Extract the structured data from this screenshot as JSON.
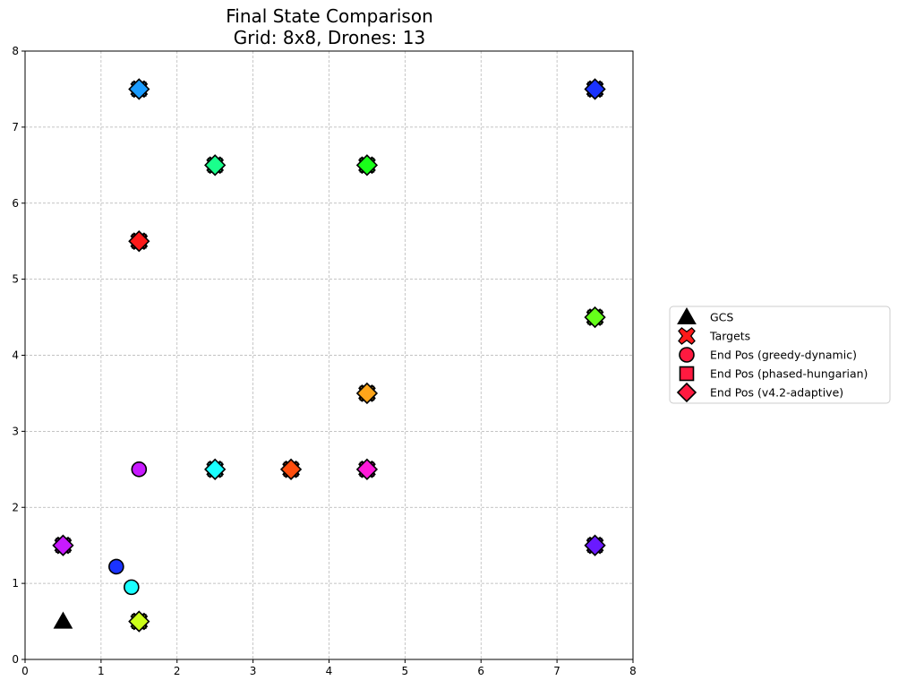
{
  "chart_data": {
    "type": "scatter",
    "title": "Final State Comparison",
    "subtitle": "Grid: 8x8, Drones: 13",
    "xlim": [
      0,
      8
    ],
    "ylim": [
      0,
      8
    ],
    "xticks": [
      "0",
      "1",
      "2",
      "3",
      "4",
      "5",
      "6",
      "7",
      "8"
    ],
    "yticks": [
      "0",
      "1",
      "2",
      "3",
      "4",
      "5",
      "6",
      "7",
      "8"
    ],
    "grid": true,
    "legend_placement": "right",
    "legend": [
      {
        "label": "GCS",
        "marker": "triangle",
        "color": "#000000"
      },
      {
        "label": "Targets",
        "marker": "x",
        "color": "#ff1a1a"
      },
      {
        "label": "End Pos (greedy-dynamic)",
        "marker": "circle",
        "color": "#ff1a40"
      },
      {
        "label": "End Pos (phased-hungarian)",
        "marker": "square",
        "color": "#ff1a40"
      },
      {
        "label": "End Pos (v4.2-adaptive)",
        "marker": "diamond",
        "color": "#ff1a40"
      }
    ],
    "gcs": {
      "x": 0.5,
      "y": 0.5
    },
    "drones": [
      {
        "color": "#ff1a1a",
        "target": [
          1.5,
          5.5
        ],
        "greedy": [
          1.5,
          5.5
        ],
        "hungarian": [
          1.5,
          5.5
        ],
        "adaptive": [
          1.5,
          5.5
        ]
      },
      {
        "color": "#ff4d0d",
        "target": [
          3.5,
          2.5
        ],
        "greedy": [
          3.5,
          2.5
        ],
        "hungarian": [
          3.5,
          2.5
        ],
        "adaptive": [
          3.5,
          2.5
        ]
      },
      {
        "color": "#ffa51a",
        "target": [
          4.5,
          3.5
        ],
        "greedy": [
          4.5,
          3.5
        ],
        "hungarian": [
          4.5,
          3.5
        ],
        "adaptive": [
          4.5,
          3.5
        ]
      },
      {
        "color": "#ccff1a",
        "target": [
          1.5,
          0.5
        ],
        "greedy": [
          1.5,
          0.5
        ],
        "hungarian": [
          1.5,
          0.5
        ],
        "adaptive": [
          1.5,
          0.5
        ]
      },
      {
        "color": "#66ff1a",
        "target": [
          7.5,
          4.5
        ],
        "greedy": [
          7.5,
          4.5
        ],
        "hungarian": [
          7.5,
          4.5
        ],
        "adaptive": [
          7.5,
          4.5
        ]
      },
      {
        "color": "#1aff1a",
        "target": [
          4.5,
          6.5
        ],
        "greedy": [
          4.5,
          6.5
        ],
        "hungarian": [
          4.5,
          6.5
        ],
        "adaptive": [
          4.5,
          6.5
        ]
      },
      {
        "color": "#1aff8c",
        "target": [
          2.5,
          6.5
        ],
        "greedy": [
          2.5,
          6.5
        ],
        "hungarian": [
          2.5,
          6.5
        ],
        "adaptive": [
          2.5,
          6.5
        ]
      },
      {
        "color": "#1affff",
        "target": [
          2.5,
          2.5
        ],
        "greedy": [
          1.4,
          0.95
        ],
        "hungarian": [
          2.5,
          2.5
        ],
        "adaptive": [
          2.5,
          2.5
        ]
      },
      {
        "color": "#1a9cff",
        "target": [
          1.5,
          7.5
        ],
        "greedy": [
          1.5,
          7.5
        ],
        "hungarian": [
          1.5,
          7.5
        ],
        "adaptive": [
          1.5,
          7.5
        ]
      },
      {
        "color": "#1a33ff",
        "target": [
          7.5,
          7.5
        ],
        "greedy": [
          1.2,
          1.22
        ],
        "hungarian": [
          7.5,
          7.5
        ],
        "adaptive": [
          7.5,
          7.5
        ]
      },
      {
        "color": "#6a1aff",
        "target": [
          7.5,
          1.5
        ],
        "greedy": [
          7.5,
          1.5
        ],
        "hungarian": [
          7.5,
          1.5
        ],
        "adaptive": [
          7.5,
          1.5
        ]
      },
      {
        "color": "#c81aff",
        "target": [
          0.5,
          1.5
        ],
        "greedy": [
          1.5,
          2.5
        ],
        "hungarian": [
          0.5,
          1.5
        ],
        "adaptive": [
          0.5,
          1.5
        ]
      },
      {
        "color": "#ff1ad9",
        "target": [
          4.5,
          2.5
        ],
        "greedy": [
          4.5,
          2.5
        ],
        "hungarian": [
          4.5,
          2.5
        ],
        "adaptive": [
          4.5,
          2.5
        ]
      }
    ]
  }
}
